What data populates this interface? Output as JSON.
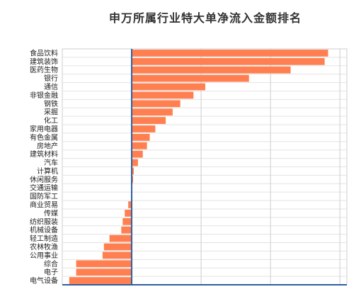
{
  "chart_data": {
    "type": "bar",
    "orientation": "horizontal",
    "title": "申万所属行业特大单净流入金额排名",
    "xlabel": "",
    "ylabel": "",
    "xlim": [
      -10,
      31
    ],
    "grid": true,
    "legend": "none",
    "bar_color": "#FF7F50",
    "axis_color": "#2E5F9E",
    "categories": [
      "食品饮料",
      "建筑装饰",
      "医药生物",
      "银行",
      "通信",
      "非银金融",
      "钢铁",
      "采掘",
      "化工",
      "家用电器",
      "有色金属",
      "房地产",
      "建筑材料",
      "汽车",
      "计算机",
      "休闲服务",
      "交通运输",
      "国防军工",
      "商业贸易",
      "传媒",
      "纺织服装",
      "机械设备",
      "轻工制造",
      "农林牧渔",
      "公用事业",
      "综合",
      "电子",
      "电气设备"
    ],
    "values": [
      28.3,
      27.8,
      22.9,
      16.9,
      10.6,
      8.9,
      7.0,
      5.9,
      4.9,
      3.4,
      2.6,
      2.2,
      1.6,
      0.9,
      0.3,
      0.2,
      0.0,
      -0.1,
      -0.5,
      -1.0,
      -1.3,
      -1.5,
      -3.2,
      -4.0,
      -4.2,
      -8.0,
      -8.0,
      -9.0
    ]
  }
}
